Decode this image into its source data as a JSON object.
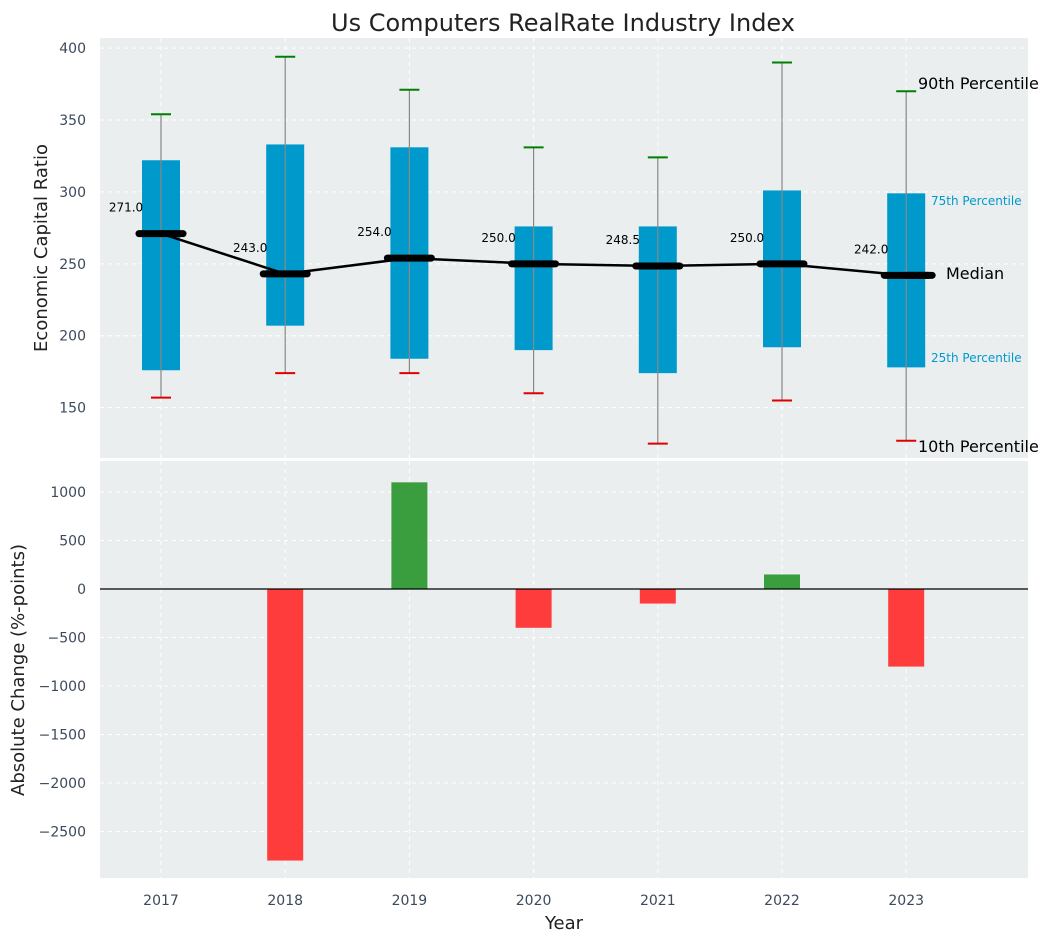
{
  "chart_data": [
    {
      "type": "box",
      "title": "Us Computers RealRate Industry Index",
      "xlabel": "",
      "ylabel": "Economic Capital Ratio",
      "categories": [
        "2017",
        "2018",
        "2019",
        "2020",
        "2021",
        "2022",
        "2023"
      ],
      "p10": [
        157,
        174,
        174,
        160,
        125,
        155,
        127
      ],
      "p25": [
        176,
        207,
        184,
        190,
        174,
        192,
        178
      ],
      "median": [
        271.0,
        243.0,
        254.0,
        250.0,
        248.5,
        250.0,
        242.0
      ],
      "p75": [
        322,
        333,
        331,
        276,
        276,
        301,
        299
      ],
      "p90": [
        354,
        394,
        371,
        331,
        324,
        390,
        370
      ],
      "median_labels": [
        "271.0",
        "243.0",
        "254.0",
        "250.0",
        "248.5",
        "250.0",
        "242.0"
      ],
      "ylim": [
        115,
        407
      ],
      "yticks": [
        150,
        200,
        250,
        300,
        350,
        400
      ],
      "annotations": {
        "p90": "90th Percentile",
        "p75": "75th Percentile",
        "median": "Median",
        "p25": "25th Percentile",
        "p10": "10th Percentile"
      },
      "grid": true,
      "colors": {
        "box": "#0099cc",
        "whisker": "#888888",
        "p90_cap": "#008000",
        "p10_cap": "#e00000",
        "median": "#000000",
        "annotation_75_25": "#0099cc",
        "background": "#eaeeef"
      }
    },
    {
      "type": "bar",
      "xlabel": "Year",
      "ylabel": "Absolute Change (%-points)",
      "categories": [
        "2017",
        "2018",
        "2019",
        "2020",
        "2021",
        "2022",
        "2023"
      ],
      "values": [
        null,
        -2800,
        1100,
        -400,
        -150,
        150,
        -800
      ],
      "ylim": [
        -2980,
        1320
      ],
      "yticks": [
        -2500,
        -2000,
        -1500,
        -1000,
        -500,
        0,
        500,
        1000
      ],
      "ytick_labels": [
        "−2500",
        "−2000",
        "−1500",
        "−1000",
        "−500",
        "0",
        "500",
        "1000"
      ],
      "grid": true,
      "colors": {
        "positive": "#3a9e3f",
        "negative": "#ff3c3c",
        "zero_line": "#000000",
        "background": "#eaeeef"
      }
    }
  ]
}
